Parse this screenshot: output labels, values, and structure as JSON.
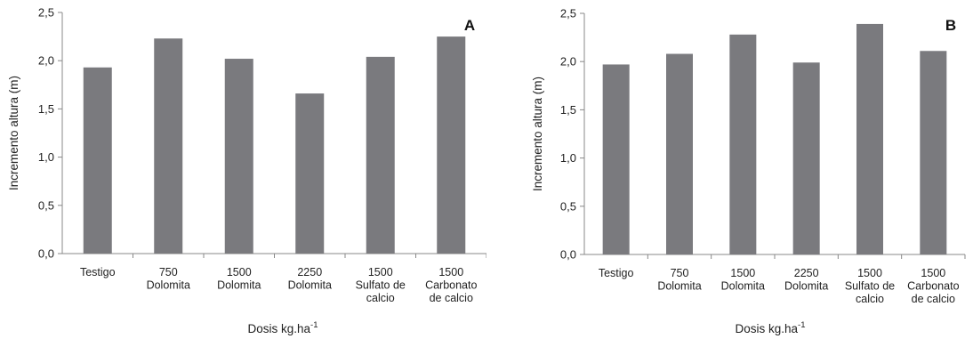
{
  "chart_data": [
    {
      "type": "bar",
      "panel_label": "A",
      "categories": [
        [
          "Testigo"
        ],
        [
          "750",
          "Dolomita"
        ],
        [
          "1500",
          "Dolomita"
        ],
        [
          "2250",
          "Dolomita"
        ],
        [
          "1500",
          "Sulfato de",
          "calcio"
        ],
        [
          "1500",
          "Carbonato",
          "de calcio"
        ]
      ],
      "values": [
        1.93,
        2.23,
        2.02,
        1.66,
        2.04,
        2.25
      ],
      "ylabel": "Incremento altura (m)",
      "xlabel_main": "Dosis kg.ha",
      "xlabel_sup": "-1",
      "ylim": [
        0,
        2.5
      ],
      "yticks": [
        "0,0",
        "0,5",
        "1,0",
        "1,5",
        "2,0",
        "2,5"
      ],
      "bar_color": "#7a7a7e",
      "grid": false
    },
    {
      "type": "bar",
      "panel_label": "B",
      "categories": [
        [
          "Testigo"
        ],
        [
          "750",
          "Dolomita"
        ],
        [
          "1500",
          "Dolomita"
        ],
        [
          "2250",
          "Dolomita"
        ],
        [
          "1500",
          "Sulfato de",
          "calcio"
        ],
        [
          "1500",
          "Carbonato",
          "de calcio"
        ]
      ],
      "values": [
        1.97,
        2.08,
        2.28,
        1.99,
        2.39,
        2.11
      ],
      "ylabel": "Incremento altura (m)",
      "xlabel_main": "Dosis kg.ha",
      "xlabel_sup": "-1",
      "ylim": [
        0,
        2.5
      ],
      "yticks": [
        "0,0",
        "0,5",
        "1,0",
        "1,5",
        "2,0",
        "2,5"
      ],
      "bar_color": "#7a7a7e",
      "grid": false
    }
  ]
}
